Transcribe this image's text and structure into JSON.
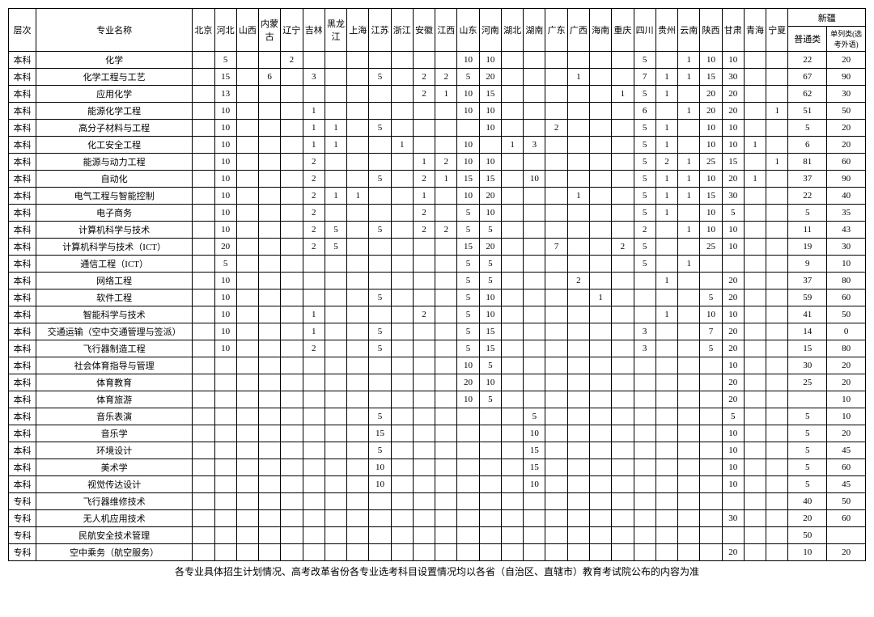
{
  "headers": {
    "level": "层次",
    "major": "专业名称",
    "provinces": [
      "北京",
      "河北",
      "山西",
      "内蒙古",
      "辽宁",
      "吉林",
      "黑龙江",
      "上海",
      "江苏",
      "浙江",
      "安徽",
      "江西",
      "山东",
      "河南",
      "湖北",
      "湖南",
      "广东",
      "广西",
      "海南",
      "重庆",
      "四川",
      "贵州",
      "云南",
      "陕西",
      "甘肃",
      "青海",
      "宁夏"
    ],
    "xinjiang": "新疆",
    "xj_cols": [
      "普通类",
      "单列类(选考外语)"
    ]
  },
  "rows": [
    {
      "lv": "本科",
      "mj": "化学",
      "c": [
        "",
        "5",
        "",
        "",
        "2",
        "",
        "",
        "",
        "",
        "",
        "",
        "",
        "10",
        "10",
        "",
        "",
        "",
        "",
        "",
        "",
        "5",
        "",
        "1",
        "10",
        "10",
        "",
        "",
        "22",
        "20"
      ]
    },
    {
      "lv": "本科",
      "mj": "化学工程与工艺",
      "c": [
        "",
        "15",
        "",
        "6",
        "",
        "3",
        "",
        "",
        "5",
        "",
        "2",
        "2",
        "5",
        "20",
        "",
        "",
        "",
        "1",
        "",
        "",
        "7",
        "1",
        "1",
        "15",
        "30",
        "",
        "",
        "67",
        "90"
      ]
    },
    {
      "lv": "本科",
      "mj": "应用化学",
      "c": [
        "",
        "13",
        "",
        "",
        "",
        "",
        "",
        "",
        "",
        "",
        "2",
        "1",
        "10",
        "15",
        "",
        "",
        "",
        "",
        "",
        "1",
        "5",
        "1",
        "",
        "20",
        "20",
        "",
        "",
        "62",
        "30"
      ]
    },
    {
      "lv": "本科",
      "mj": "能源化学工程",
      "c": [
        "",
        "10",
        "",
        "",
        "",
        "1",
        "",
        "",
        "",
        "",
        "",
        "",
        "10",
        "10",
        "",
        "",
        "",
        "",
        "",
        "",
        "6",
        "",
        "1",
        "20",
        "20",
        "",
        "1",
        "51",
        "50"
      ]
    },
    {
      "lv": "本科",
      "mj": "高分子材料与工程",
      "c": [
        "",
        "10",
        "",
        "",
        "",
        "1",
        "1",
        "",
        "5",
        "",
        "",
        "",
        "",
        "10",
        "",
        "",
        "2",
        "",
        "",
        "",
        "5",
        "1",
        "",
        "10",
        "10",
        "",
        "",
        "5",
        "20"
      ]
    },
    {
      "lv": "本科",
      "mj": "化工安全工程",
      "c": [
        "",
        "10",
        "",
        "",
        "",
        "1",
        "1",
        "",
        "",
        "1",
        "",
        "",
        "10",
        "",
        "1",
        "3",
        "",
        "",
        "",
        "",
        "5",
        "1",
        "",
        "10",
        "10",
        "1",
        "",
        "6",
        "20"
      ]
    },
    {
      "lv": "本科",
      "mj": "能源与动力工程",
      "c": [
        "",
        "10",
        "",
        "",
        "",
        "2",
        "",
        "",
        "",
        "",
        "1",
        "2",
        "10",
        "10",
        "",
        "",
        "",
        "",
        "",
        "",
        "5",
        "2",
        "1",
        "25",
        "15",
        "",
        "1",
        "81",
        "60"
      ]
    },
    {
      "lv": "本科",
      "mj": "自动化",
      "c": [
        "",
        "10",
        "",
        "",
        "",
        "2",
        "",
        "",
        "5",
        "",
        "2",
        "1",
        "15",
        "15",
        "",
        "10",
        "",
        "",
        "",
        "",
        "5",
        "1",
        "1",
        "10",
        "20",
        "1",
        "",
        "37",
        "90"
      ]
    },
    {
      "lv": "本科",
      "mj": "电气工程与智能控制",
      "c": [
        "",
        "10",
        "",
        "",
        "",
        "2",
        "1",
        "1",
        "",
        "",
        "1",
        "",
        "10",
        "20",
        "",
        "",
        "",
        "1",
        "",
        "",
        "5",
        "1",
        "1",
        "15",
        "30",
        "",
        "",
        "22",
        "40"
      ]
    },
    {
      "lv": "本科",
      "mj": "电子商务",
      "c": [
        "",
        "10",
        "",
        "",
        "",
        "2",
        "",
        "",
        "",
        "",
        "2",
        "",
        "5",
        "10",
        "",
        "",
        "",
        "",
        "",
        "",
        "5",
        "1",
        "",
        "10",
        "5",
        "",
        "",
        "5",
        "35"
      ]
    },
    {
      "lv": "本科",
      "mj": "计算机科学与技术",
      "c": [
        "",
        "10",
        "",
        "",
        "",
        "2",
        "5",
        "",
        "5",
        "",
        "2",
        "2",
        "5",
        "5",
        "",
        "",
        "",
        "",
        "",
        "",
        "2",
        "",
        "1",
        "10",
        "10",
        "",
        "",
        "11",
        "43"
      ]
    },
    {
      "lv": "本科",
      "mj": "计算机科学与技术（ICT）",
      "c": [
        "",
        "20",
        "",
        "",
        "",
        "2",
        "5",
        "",
        "",
        "",
        "",
        "",
        "15",
        "20",
        "",
        "",
        "7",
        "",
        "",
        "2",
        "5",
        "",
        "",
        "25",
        "10",
        "",
        "",
        "19",
        "30"
      ]
    },
    {
      "lv": "本科",
      "mj": "通信工程（ICT）",
      "c": [
        "",
        "5",
        "",
        "",
        "",
        "",
        "",
        "",
        "",
        "",
        "",
        "",
        "5",
        "5",
        "",
        "",
        "",
        "",
        "",
        "",
        "5",
        "",
        "1",
        "",
        "",
        "",
        "",
        "9",
        "10"
      ]
    },
    {
      "lv": "本科",
      "mj": "网络工程",
      "c": [
        "",
        "10",
        "",
        "",
        "",
        "",
        "",
        "",
        "",
        "",
        "",
        "",
        "5",
        "5",
        "",
        "",
        "",
        "2",
        "",
        "",
        "",
        "1",
        "",
        "",
        "20",
        "",
        "",
        "37",
        "80"
      ]
    },
    {
      "lv": "本科",
      "mj": "软件工程",
      "c": [
        "",
        "10",
        "",
        "",
        "",
        "",
        "",
        "",
        "5",
        "",
        "",
        "",
        "5",
        "10",
        "",
        "",
        "",
        "",
        "1",
        "",
        "",
        "",
        "",
        "5",
        "20",
        "",
        "",
        "59",
        "60"
      ]
    },
    {
      "lv": "本科",
      "mj": "智能科学与技术",
      "c": [
        "",
        "10",
        "",
        "",
        "",
        "1",
        "",
        "",
        "",
        "",
        "2",
        "",
        "5",
        "10",
        "",
        "",
        "",
        "",
        "",
        "",
        "",
        "1",
        "",
        "10",
        "10",
        "",
        "",
        "41",
        "50"
      ]
    },
    {
      "lv": "本科",
      "mj": "交通运输（空中交通管理与签派）",
      "sm": true,
      "c": [
        "",
        "10",
        "",
        "",
        "",
        "1",
        "",
        "",
        "5",
        "",
        "",
        "",
        "5",
        "15",
        "",
        "",
        "",
        "",
        "",
        "",
        "3",
        "",
        "",
        "7",
        "20",
        "",
        "",
        "14",
        "0"
      ]
    },
    {
      "lv": "本科",
      "mj": "飞行器制造工程",
      "c": [
        "",
        "10",
        "",
        "",
        "",
        "2",
        "",
        "",
        "5",
        "",
        "",
        "",
        "5",
        "15",
        "",
        "",
        "",
        "",
        "",
        "",
        "3",
        "",
        "",
        "5",
        "20",
        "",
        "",
        "15",
        "80"
      ]
    },
    {
      "lv": "本科",
      "mj": "社会体育指导与管理",
      "c": [
        "",
        "",
        "",
        "",
        "",
        "",
        "",
        "",
        "",
        "",
        "",
        "",
        "10",
        "5",
        "",
        "",
        "",
        "",
        "",
        "",
        "",
        "",
        "",
        "",
        "10",
        "",
        "",
        "30",
        "20"
      ]
    },
    {
      "lv": "本科",
      "mj": "体育教育",
      "c": [
        "",
        "",
        "",
        "",
        "",
        "",
        "",
        "",
        "",
        "",
        "",
        "",
        "20",
        "10",
        "",
        "",
        "",
        "",
        "",
        "",
        "",
        "",
        "",
        "",
        "20",
        "",
        "",
        "25",
        "20"
      ]
    },
    {
      "lv": "本科",
      "mj": "体育旅游",
      "c": [
        "",
        "",
        "",
        "",
        "",
        "",
        "",
        "",
        "",
        "",
        "",
        "",
        "10",
        "5",
        "",
        "",
        "",
        "",
        "",
        "",
        "",
        "",
        "",
        "",
        "20",
        "",
        "",
        "",
        "10"
      ]
    },
    {
      "lv": "本科",
      "mj": "音乐表演",
      "c": [
        "",
        "",
        "",
        "",
        "",
        "",
        "",
        "",
        "5",
        "",
        "",
        "",
        "",
        "",
        "",
        "5",
        "",
        "",
        "",
        "",
        "",
        "",
        "",
        "",
        "5",
        "",
        "",
        "5",
        "10"
      ]
    },
    {
      "lv": "本科",
      "mj": "音乐学",
      "c": [
        "",
        "",
        "",
        "",
        "",
        "",
        "",
        "",
        "15",
        "",
        "",
        "",
        "",
        "",
        "",
        "10",
        "",
        "",
        "",
        "",
        "",
        "",
        "",
        "",
        "10",
        "",
        "",
        "5",
        "20"
      ]
    },
    {
      "lv": "本科",
      "mj": "环境设计",
      "c": [
        "",
        "",
        "",
        "",
        "",
        "",
        "",
        "",
        "5",
        "",
        "",
        "",
        "",
        "",
        "",
        "15",
        "",
        "",
        "",
        "",
        "",
        "",
        "",
        "",
        "10",
        "",
        "",
        "5",
        "45"
      ]
    },
    {
      "lv": "本科",
      "mj": "美术学",
      "c": [
        "",
        "",
        "",
        "",
        "",
        "",
        "",
        "",
        "10",
        "",
        "",
        "",
        "",
        "",
        "",
        "15",
        "",
        "",
        "",
        "",
        "",
        "",
        "",
        "",
        "10",
        "",
        "",
        "5",
        "60"
      ]
    },
    {
      "lv": "本科",
      "mj": "视觉传达设计",
      "c": [
        "",
        "",
        "",
        "",
        "",
        "",
        "",
        "",
        "10",
        "",
        "",
        "",
        "",
        "",
        "",
        "10",
        "",
        "",
        "",
        "",
        "",
        "",
        "",
        "",
        "10",
        "",
        "",
        "5",
        "45"
      ]
    },
    {
      "lv": "专科",
      "mj": "飞行器维修技术",
      "c": [
        "",
        "",
        "",
        "",
        "",
        "",
        "",
        "",
        "",
        "",
        "",
        "",
        "",
        "",
        "",
        "",
        "",
        "",
        "",
        "",
        "",
        "",
        "",
        "",
        "",
        "",
        "",
        "40",
        "50"
      ]
    },
    {
      "lv": "专科",
      "mj": "无人机应用技术",
      "c": [
        "",
        "",
        "",
        "",
        "",
        "",
        "",
        "",
        "",
        "",
        "",
        "",
        "",
        "",
        "",
        "",
        "",
        "",
        "",
        "",
        "",
        "",
        "",
        "",
        "30",
        "",
        "",
        "20",
        "60"
      ]
    },
    {
      "lv": "专科",
      "mj": "民航安全技术管理",
      "c": [
        "",
        "",
        "",
        "",
        "",
        "",
        "",
        "",
        "",
        "",
        "",
        "",
        "",
        "",
        "",
        "",
        "",
        "",
        "",
        "",
        "",
        "",
        "",
        "",
        "",
        "",
        "",
        "50",
        ""
      ]
    },
    {
      "lv": "专科",
      "mj": "空中乘务（航空服务）",
      "c": [
        "",
        "",
        "",
        "",
        "",
        "",
        "",
        "",
        "",
        "",
        "",
        "",
        "",
        "",
        "",
        "",
        "",
        "",
        "",
        "",
        "",
        "",
        "",
        "",
        "20",
        "",
        "",
        "10",
        "20"
      ]
    }
  ],
  "footnote": "各专业具体招生计划情况、高考改革省份各专业选考科目设置情况均以各省（自治区、直辖市）教育考试院公布的内容为准"
}
